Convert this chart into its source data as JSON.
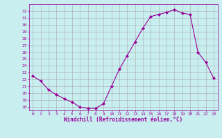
{
  "hours": [
    0,
    1,
    2,
    3,
    4,
    5,
    6,
    7,
    8,
    9,
    10,
    11,
    12,
    13,
    14,
    15,
    16,
    17,
    18,
    19,
    20,
    21,
    22,
    23
  ],
  "windchill": [
    22.5,
    21.8,
    20.5,
    19.8,
    19.2,
    18.7,
    18.0,
    17.8,
    17.8,
    18.5,
    21.0,
    23.5,
    25.5,
    27.5,
    29.5,
    31.2,
    31.5,
    31.8,
    32.2,
    31.7,
    31.5,
    26.0,
    24.5,
    22.2
  ],
  "line_color": "#990099",
  "marker": "D",
  "marker_size": 2,
  "bg_color": "#c8eef0",
  "grid_color": "#aaaaaa",
  "xlabel": "Windchill (Refroidissement éolien,°C)",
  "xlabel_color": "#990099",
  "tick_color": "#990099",
  "ylim": [
    17.5,
    33.0
  ],
  "xlim": [
    -0.5,
    23.5
  ],
  "yticks": [
    18,
    19,
    20,
    21,
    22,
    23,
    24,
    25,
    26,
    27,
    28,
    29,
    30,
    31,
    32
  ],
  "xticks": [
    0,
    1,
    2,
    3,
    4,
    5,
    6,
    7,
    8,
    9,
    10,
    11,
    12,
    13,
    14,
    15,
    16,
    17,
    18,
    19,
    20,
    21,
    22,
    23
  ]
}
